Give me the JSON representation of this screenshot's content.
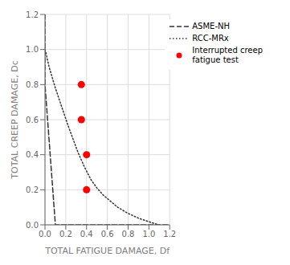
{
  "chart_data": {
    "type": "line",
    "xlabel": "TOTAL FATIGUE DAMAGE, Df",
    "ylabel": "TOTAL CREEP DAMAGE, Dc",
    "xlim": [
      0.0,
      1.2
    ],
    "ylim": [
      0.0,
      1.2
    ],
    "xticks": [
      {
        "value": 0,
        "label": "0.0"
      },
      0.2,
      0.4,
      0.6,
      0.8,
      {
        "value": 1,
        "label": "1.0"
      },
      1.2
    ],
    "yticks": [
      {
        "value": 0,
        "label": "0.0"
      },
      0.2,
      0.4,
      0.6,
      0.8,
      {
        "value": 1,
        "label": "1.0"
      },
      1.2
    ],
    "grid": true,
    "legend": "upper right",
    "series": [
      {
        "name": "ASME-NH",
        "type": "line",
        "line_style": "dashed",
        "color": "#333333",
        "x": [
          0.0,
          0.0,
          0.1,
          1.2
        ],
        "values": [
          1.2,
          0.8,
          0.0,
          0.0
        ]
      },
      {
        "name": "RCC-MRx",
        "type": "line",
        "line_style": "dotted",
        "color": "#333333",
        "x": [
          0.0,
          0.01,
          0.02,
          0.04,
          0.07,
          0.1,
          0.14,
          0.18,
          0.22,
          0.27,
          0.32,
          0.38,
          0.44,
          0.5,
          0.56,
          0.62,
          0.7,
          0.8,
          0.9,
          1.0,
          1.05,
          1.1
        ],
        "values": [
          1.0,
          0.98,
          0.95,
          0.9,
          0.84,
          0.78,
          0.71,
          0.64,
          0.57,
          0.49,
          0.41,
          0.33,
          0.26,
          0.21,
          0.17,
          0.14,
          0.1,
          0.065,
          0.038,
          0.018,
          0.008,
          0.0
        ]
      },
      {
        "name": "Interrupted creep\nfatigue test",
        "type": "scatter",
        "marker": "circle",
        "color": "red",
        "x": [
          0.35,
          0.35,
          0.4,
          0.4
        ],
        "values": [
          0.8,
          0.6,
          0.4,
          0.2
        ]
      }
    ]
  }
}
